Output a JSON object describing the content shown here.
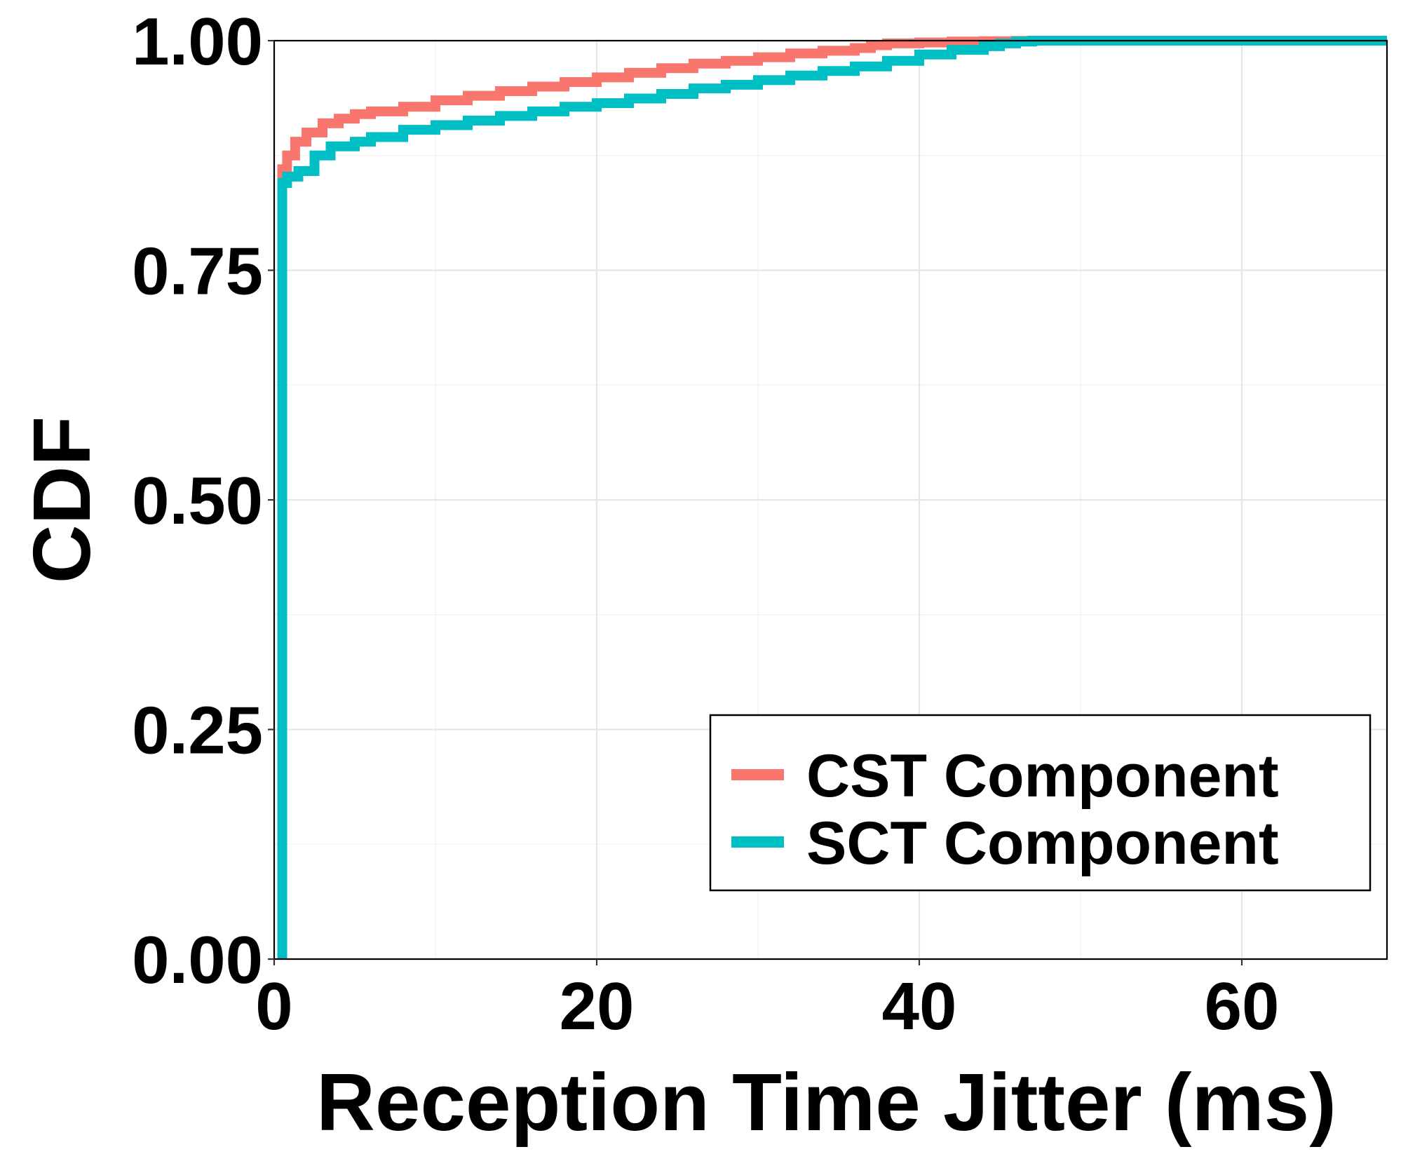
{
  "chart_data": {
    "type": "line",
    "title": "",
    "xlabel": "Reception Time Jitter (ms)",
    "ylabel": "CDF",
    "xlim": [
      0,
      69
    ],
    "ylim": [
      0,
      1
    ],
    "x_ticks": [
      0,
      20,
      40,
      60
    ],
    "x_tick_labels": [
      "0",
      "20",
      "40",
      "60"
    ],
    "y_ticks": [
      0,
      0.25,
      0.5,
      0.75,
      1
    ],
    "y_tick_labels": [
      "0.00",
      "0.25",
      "0.50",
      "0.75",
      "1.00"
    ],
    "grid": true,
    "legend_position": "bottom-right",
    "series": [
      {
        "name": "CST Component",
        "color": "#F8766D",
        "step": true,
        "x": [
          0.5,
          0.5,
          0.8,
          1.3,
          2,
          3,
          4,
          5,
          6,
          8,
          10,
          12,
          14,
          16,
          18,
          20,
          22,
          24,
          26,
          28,
          30,
          32,
          34,
          36,
          37,
          38,
          40,
          42,
          44,
          46,
          47,
          69
        ],
        "y": [
          0,
          0.86,
          0.875,
          0.89,
          0.9,
          0.91,
          0.915,
          0.92,
          0.923,
          0.928,
          0.935,
          0.94,
          0.945,
          0.95,
          0.955,
          0.96,
          0.965,
          0.97,
          0.975,
          0.978,
          0.982,
          0.986,
          0.989,
          0.992,
          0.995,
          0.997,
          0.998,
          0.999,
          0.9995,
          0.9998,
          1,
          1
        ]
      },
      {
        "name": "SCT Component",
        "color": "#00BFC4",
        "step": true,
        "x": [
          0.5,
          0.5,
          0.8,
          1.5,
          2.5,
          3.5,
          5,
          6,
          8,
          10,
          12,
          14,
          16,
          18,
          20,
          22,
          24,
          26,
          28,
          30,
          32,
          34,
          36,
          38,
          40,
          42,
          44,
          45,
          46,
          47,
          69
        ],
        "y": [
          0,
          0.845,
          0.852,
          0.858,
          0.875,
          0.885,
          0.89,
          0.895,
          0.903,
          0.908,
          0.913,
          0.918,
          0.923,
          0.928,
          0.932,
          0.937,
          0.942,
          0.948,
          0.952,
          0.957,
          0.962,
          0.967,
          0.972,
          0.978,
          0.985,
          0.99,
          0.994,
          0.997,
          0.999,
          1,
          1
        ]
      }
    ]
  }
}
